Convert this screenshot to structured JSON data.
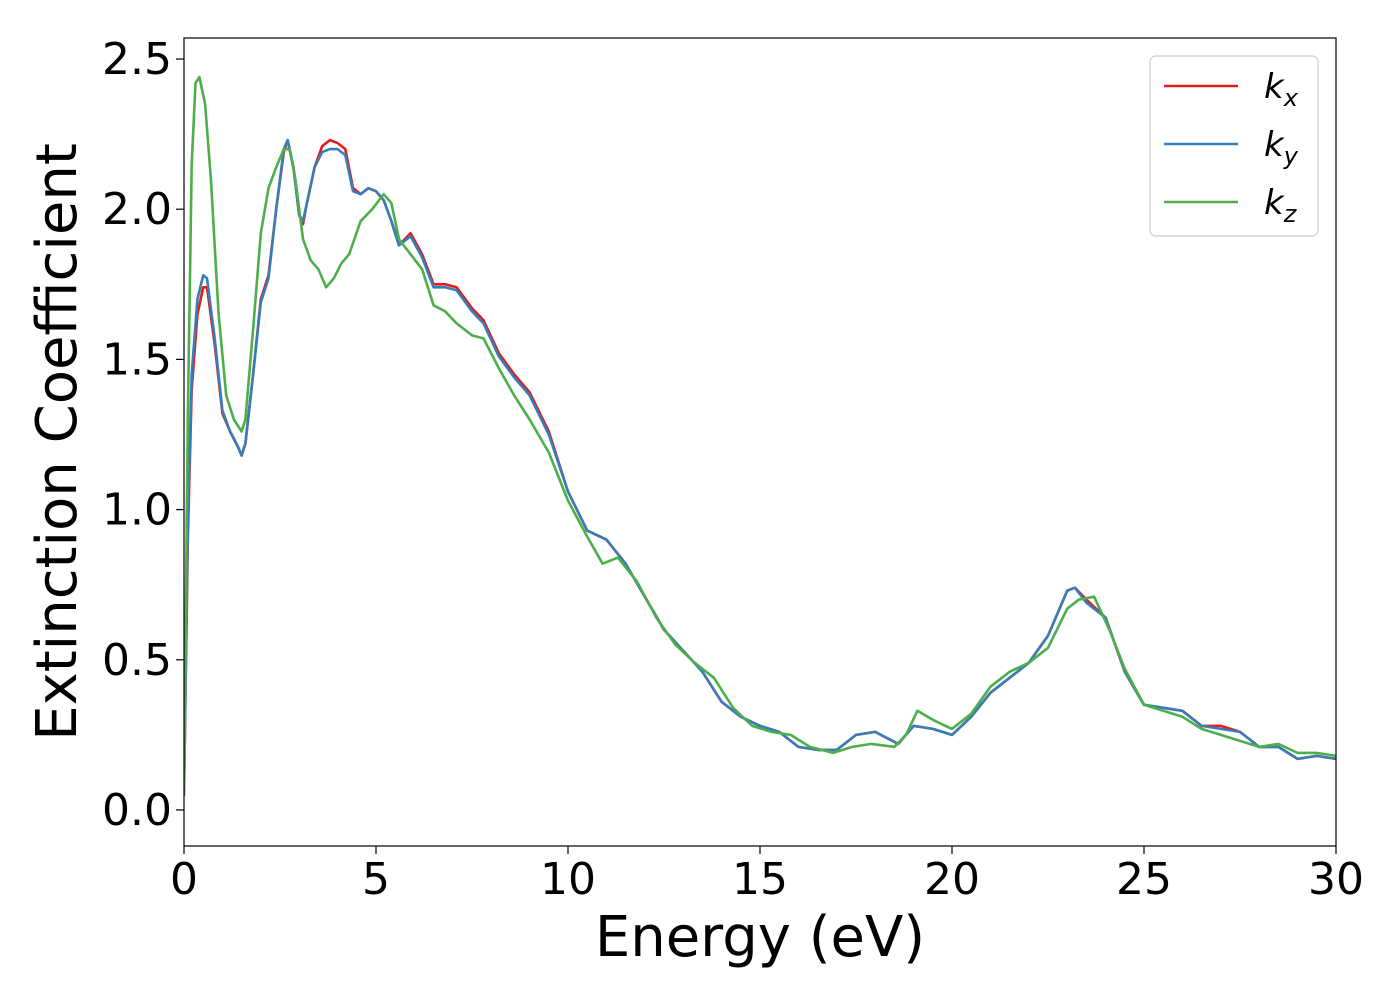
{
  "chart_data": {
    "type": "line",
    "xlabel": "Energy (eV)",
    "ylabel": "Extinction Coefficient",
    "xlim": [
      0,
      30
    ],
    "ylim": [
      -0.12,
      2.57
    ],
    "xticks": [
      0,
      5,
      10,
      15,
      20,
      25,
      30
    ],
    "yticks": [
      0.0,
      0.5,
      1.0,
      1.5,
      2.0,
      2.5
    ],
    "xtick_labels": [
      "0",
      "5",
      "10",
      "15",
      "20",
      "25",
      "30"
    ],
    "ytick_labels": [
      "0.0",
      "0.5",
      "1.0",
      "1.5",
      "2.0",
      "2.5"
    ],
    "grid": false,
    "legend_position": "top-right",
    "series": [
      {
        "name": "k_x",
        "label_main": "k",
        "label_sub": "x",
        "color": "#e41a1c",
        "points": [
          [
            0,
            0.05
          ],
          [
            0.1,
            0.9
          ],
          [
            0.2,
            1.4
          ],
          [
            0.35,
            1.65
          ],
          [
            0.5,
            1.74
          ],
          [
            0.6,
            1.74
          ],
          [
            0.8,
            1.55
          ],
          [
            1.0,
            1.32
          ],
          [
            1.2,
            1.26
          ],
          [
            1.4,
            1.21
          ],
          [
            1.5,
            1.18
          ],
          [
            1.6,
            1.22
          ],
          [
            1.8,
            1.45
          ],
          [
            2.0,
            1.7
          ],
          [
            2.2,
            1.78
          ],
          [
            2.4,
            2.0
          ],
          [
            2.6,
            2.19
          ],
          [
            2.7,
            2.23
          ],
          [
            2.85,
            2.14
          ],
          [
            3.0,
            1.98
          ],
          [
            3.1,
            1.95
          ],
          [
            3.2,
            2.02
          ],
          [
            3.4,
            2.14
          ],
          [
            3.6,
            2.21
          ],
          [
            3.8,
            2.23
          ],
          [
            4.0,
            2.22
          ],
          [
            4.2,
            2.2
          ],
          [
            4.4,
            2.07
          ],
          [
            4.6,
            2.05
          ],
          [
            4.8,
            2.07
          ],
          [
            5.0,
            2.06
          ],
          [
            5.2,
            2.03
          ],
          [
            5.4,
            1.96
          ],
          [
            5.6,
            1.88
          ],
          [
            5.9,
            1.92
          ],
          [
            6.2,
            1.85
          ],
          [
            6.5,
            1.75
          ],
          [
            6.8,
            1.75
          ],
          [
            7.1,
            1.74
          ],
          [
            7.5,
            1.67
          ],
          [
            7.8,
            1.63
          ],
          [
            8.2,
            1.52
          ],
          [
            8.6,
            1.45
          ],
          [
            9.0,
            1.39
          ],
          [
            9.5,
            1.26
          ],
          [
            10.0,
            1.06
          ],
          [
            10.5,
            0.93
          ],
          [
            11.0,
            0.9
          ],
          [
            11.5,
            0.82
          ],
          [
            12.0,
            0.71
          ],
          [
            12.5,
            0.6
          ],
          [
            13.0,
            0.53
          ],
          [
            13.5,
            0.46
          ],
          [
            14.0,
            0.36
          ],
          [
            14.5,
            0.31
          ],
          [
            15.0,
            0.28
          ],
          [
            15.5,
            0.26
          ],
          [
            16.0,
            0.21
          ],
          [
            16.5,
            0.2
          ],
          [
            17.0,
            0.2
          ],
          [
            17.5,
            0.25
          ],
          [
            18.0,
            0.26
          ],
          [
            18.6,
            0.22
          ],
          [
            19.0,
            0.28
          ],
          [
            19.5,
            0.27
          ],
          [
            20.0,
            0.25
          ],
          [
            20.5,
            0.31
          ],
          [
            21.0,
            0.39
          ],
          [
            21.5,
            0.44
          ],
          [
            22.0,
            0.49
          ],
          [
            22.5,
            0.58
          ],
          [
            23.0,
            0.73
          ],
          [
            23.2,
            0.74
          ],
          [
            23.5,
            0.7
          ],
          [
            24.0,
            0.64
          ],
          [
            24.5,
            0.46
          ],
          [
            25.0,
            0.35
          ],
          [
            25.5,
            0.34
          ],
          [
            26.0,
            0.33
          ],
          [
            26.5,
            0.28
          ],
          [
            27.0,
            0.28
          ],
          [
            27.5,
            0.26
          ],
          [
            28.0,
            0.21
          ],
          [
            28.5,
            0.21
          ],
          [
            29.0,
            0.17
          ],
          [
            29.5,
            0.18
          ],
          [
            30.0,
            0.17
          ]
        ]
      },
      {
        "name": "k_y",
        "label_main": "k",
        "label_sub": "y",
        "color": "#377eb8",
        "points": [
          [
            0,
            0.05
          ],
          [
            0.1,
            0.95
          ],
          [
            0.2,
            1.45
          ],
          [
            0.35,
            1.7
          ],
          [
            0.5,
            1.78
          ],
          [
            0.6,
            1.77
          ],
          [
            0.8,
            1.57
          ],
          [
            1.0,
            1.33
          ],
          [
            1.2,
            1.26
          ],
          [
            1.4,
            1.21
          ],
          [
            1.5,
            1.18
          ],
          [
            1.6,
            1.22
          ],
          [
            1.8,
            1.45
          ],
          [
            2.0,
            1.69
          ],
          [
            2.2,
            1.77
          ],
          [
            2.4,
            2.0
          ],
          [
            2.6,
            2.2
          ],
          [
            2.7,
            2.23
          ],
          [
            2.85,
            2.14
          ],
          [
            3.0,
            1.98
          ],
          [
            3.1,
            1.96
          ],
          [
            3.2,
            2.02
          ],
          [
            3.4,
            2.14
          ],
          [
            3.6,
            2.19
          ],
          [
            3.8,
            2.2
          ],
          [
            4.0,
            2.2
          ],
          [
            4.2,
            2.18
          ],
          [
            4.4,
            2.06
          ],
          [
            4.6,
            2.05
          ],
          [
            4.8,
            2.07
          ],
          [
            5.0,
            2.06
          ],
          [
            5.2,
            2.03
          ],
          [
            5.4,
            1.96
          ],
          [
            5.6,
            1.88
          ],
          [
            5.9,
            1.91
          ],
          [
            6.2,
            1.84
          ],
          [
            6.5,
            1.74
          ],
          [
            6.8,
            1.74
          ],
          [
            7.1,
            1.73
          ],
          [
            7.5,
            1.66
          ],
          [
            7.8,
            1.62
          ],
          [
            8.2,
            1.51
          ],
          [
            8.6,
            1.44
          ],
          [
            9.0,
            1.38
          ],
          [
            9.5,
            1.25
          ],
          [
            10.0,
            1.06
          ],
          [
            10.5,
            0.93
          ],
          [
            11.0,
            0.9
          ],
          [
            11.5,
            0.82
          ],
          [
            12.0,
            0.71
          ],
          [
            12.5,
            0.6
          ],
          [
            13.0,
            0.53
          ],
          [
            13.5,
            0.46
          ],
          [
            14.0,
            0.36
          ],
          [
            14.5,
            0.31
          ],
          [
            15.0,
            0.28
          ],
          [
            15.5,
            0.26
          ],
          [
            16.0,
            0.21
          ],
          [
            16.5,
            0.2
          ],
          [
            17.0,
            0.2
          ],
          [
            17.5,
            0.25
          ],
          [
            18.0,
            0.26
          ],
          [
            18.6,
            0.22
          ],
          [
            19.0,
            0.28
          ],
          [
            19.5,
            0.27
          ],
          [
            20.0,
            0.25
          ],
          [
            20.5,
            0.31
          ],
          [
            21.0,
            0.39
          ],
          [
            21.5,
            0.44
          ],
          [
            22.0,
            0.49
          ],
          [
            22.5,
            0.58
          ],
          [
            23.0,
            0.73
          ],
          [
            23.2,
            0.74
          ],
          [
            23.5,
            0.69
          ],
          [
            24.0,
            0.64
          ],
          [
            24.5,
            0.46
          ],
          [
            25.0,
            0.35
          ],
          [
            25.5,
            0.34
          ],
          [
            26.0,
            0.33
          ],
          [
            26.5,
            0.28
          ],
          [
            27.0,
            0.27
          ],
          [
            27.5,
            0.26
          ],
          [
            28.0,
            0.21
          ],
          [
            28.5,
            0.21
          ],
          [
            29.0,
            0.17
          ],
          [
            29.5,
            0.18
          ],
          [
            30.0,
            0.17
          ]
        ]
      },
      {
        "name": "k_z",
        "label_main": "k",
        "label_sub": "z",
        "color": "#4daf4a",
        "points": [
          [
            0,
            0.05
          ],
          [
            0.1,
            1.3
          ],
          [
            0.2,
            2.15
          ],
          [
            0.3,
            2.42
          ],
          [
            0.4,
            2.44
          ],
          [
            0.55,
            2.35
          ],
          [
            0.7,
            2.1
          ],
          [
            0.9,
            1.65
          ],
          [
            1.1,
            1.38
          ],
          [
            1.3,
            1.3
          ],
          [
            1.5,
            1.26
          ],
          [
            1.6,
            1.3
          ],
          [
            1.8,
            1.6
          ],
          [
            2.0,
            1.92
          ],
          [
            2.2,
            2.07
          ],
          [
            2.4,
            2.14
          ],
          [
            2.6,
            2.2
          ],
          [
            2.75,
            2.2
          ],
          [
            2.9,
            2.1
          ],
          [
            3.1,
            1.9
          ],
          [
            3.3,
            1.83
          ],
          [
            3.5,
            1.8
          ],
          [
            3.7,
            1.74
          ],
          [
            3.9,
            1.77
          ],
          [
            4.1,
            1.82
          ],
          [
            4.3,
            1.85
          ],
          [
            4.6,
            1.96
          ],
          [
            4.9,
            2.0
          ],
          [
            5.2,
            2.05
          ],
          [
            5.4,
            2.02
          ],
          [
            5.6,
            1.9
          ],
          [
            5.9,
            1.85
          ],
          [
            6.2,
            1.8
          ],
          [
            6.5,
            1.68
          ],
          [
            6.8,
            1.66
          ],
          [
            7.1,
            1.62
          ],
          [
            7.5,
            1.58
          ],
          [
            7.8,
            1.57
          ],
          [
            8.2,
            1.47
          ],
          [
            8.6,
            1.38
          ],
          [
            9.0,
            1.3
          ],
          [
            9.5,
            1.19
          ],
          [
            10.0,
            1.03
          ],
          [
            10.5,
            0.91
          ],
          [
            10.9,
            0.82
          ],
          [
            11.3,
            0.84
          ],
          [
            11.8,
            0.76
          ],
          [
            12.3,
            0.64
          ],
          [
            12.8,
            0.55
          ],
          [
            13.3,
            0.49
          ],
          [
            13.8,
            0.44
          ],
          [
            14.3,
            0.34
          ],
          [
            14.8,
            0.28
          ],
          [
            15.3,
            0.26
          ],
          [
            15.8,
            0.25
          ],
          [
            16.3,
            0.21
          ],
          [
            16.9,
            0.19
          ],
          [
            17.4,
            0.21
          ],
          [
            17.9,
            0.22
          ],
          [
            18.5,
            0.21
          ],
          [
            18.8,
            0.25
          ],
          [
            19.1,
            0.33
          ],
          [
            19.5,
            0.3
          ],
          [
            20.0,
            0.27
          ],
          [
            20.5,
            0.32
          ],
          [
            21.0,
            0.41
          ],
          [
            21.5,
            0.46
          ],
          [
            22.0,
            0.49
          ],
          [
            22.5,
            0.54
          ],
          [
            23.0,
            0.67
          ],
          [
            23.3,
            0.7
          ],
          [
            23.7,
            0.71
          ],
          [
            24.1,
            0.6
          ],
          [
            24.5,
            0.47
          ],
          [
            25.0,
            0.35
          ],
          [
            25.5,
            0.33
          ],
          [
            26.0,
            0.31
          ],
          [
            26.5,
            0.27
          ],
          [
            27.0,
            0.25
          ],
          [
            27.5,
            0.23
          ],
          [
            28.0,
            0.21
          ],
          [
            28.5,
            0.22
          ],
          [
            29.0,
            0.19
          ],
          [
            29.5,
            0.19
          ],
          [
            30.0,
            0.18
          ]
        ]
      }
    ]
  }
}
